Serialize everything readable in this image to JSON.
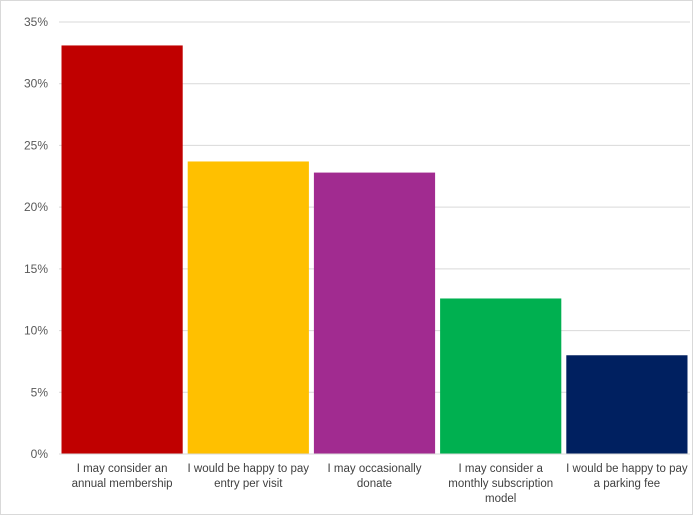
{
  "chart_data": {
    "type": "bar",
    "categories": [
      [
        "I may consider an",
        "annual membership"
      ],
      [
        "I would be happy to pay",
        "entry per visit"
      ],
      [
        "I may occasionally",
        "donate"
      ],
      [
        "I may consider a",
        "monthly subscription",
        "model"
      ],
      [
        "I would be happy to pay",
        "a parking fee"
      ]
    ],
    "values": [
      33.1,
      23.7,
      22.8,
      12.6,
      8.0
    ],
    "colors": [
      "#c00000",
      "#ffc000",
      "#a12b90",
      "#00b050",
      "#002060"
    ],
    "ylim": [
      0,
      35
    ],
    "yticks": [
      0,
      5,
      10,
      15,
      20,
      25,
      30,
      35
    ],
    "ytick_format": "percent",
    "grid": true,
    "title": "",
    "xlabel": "",
    "ylabel": ""
  }
}
